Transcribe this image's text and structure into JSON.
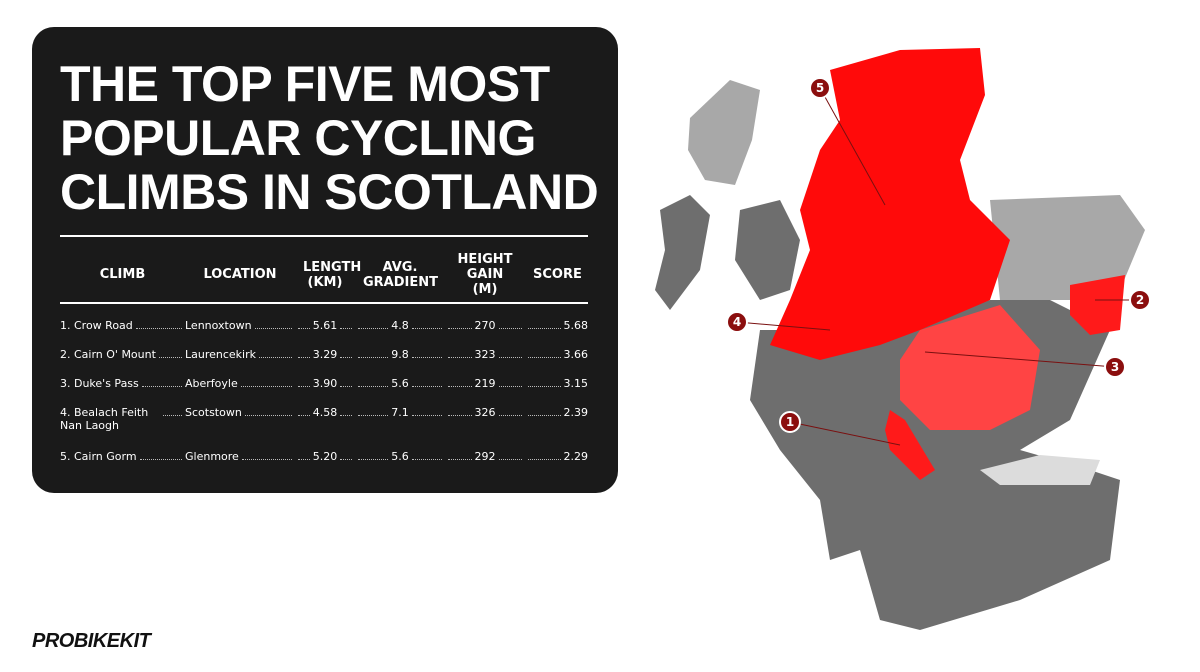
{
  "title_lines": [
    "THE TOP FIVE MOST",
    "POPULAR CYCLING",
    "CLIMBS IN SCOTLAND"
  ],
  "table": {
    "headers": [
      "CLIMB",
      "LOCATION",
      "LENGTH (KM)",
      "AVG. GRADIENT",
      "HEIGHT GAIN (M)",
      "SCORE"
    ],
    "rows": [
      [
        "1. Crow Road",
        "Lennoxtown",
        "5.61",
        "4.8",
        "270",
        "5.68"
      ],
      [
        "2. Cairn O' Mount",
        "Laurencekirk",
        "3.29",
        "9.8",
        "323",
        "3.66"
      ],
      [
        "3. Duke's Pass",
        "Aberfoyle",
        "3.90",
        "5.6",
        "219",
        "3.15"
      ],
      [
        "4. Bealach Feith Nan Laogh",
        "Scotstown",
        "4.58",
        "7.1",
        "326",
        "2.39"
      ],
      [
        "5. Cairn Gorm",
        "Glenmore",
        "5.20",
        "5.6",
        "292",
        "2.29"
      ]
    ]
  },
  "map": {
    "markers": [
      "1",
      "2",
      "3",
      "4",
      "5"
    ]
  },
  "logo": "PROBIKEKIT"
}
